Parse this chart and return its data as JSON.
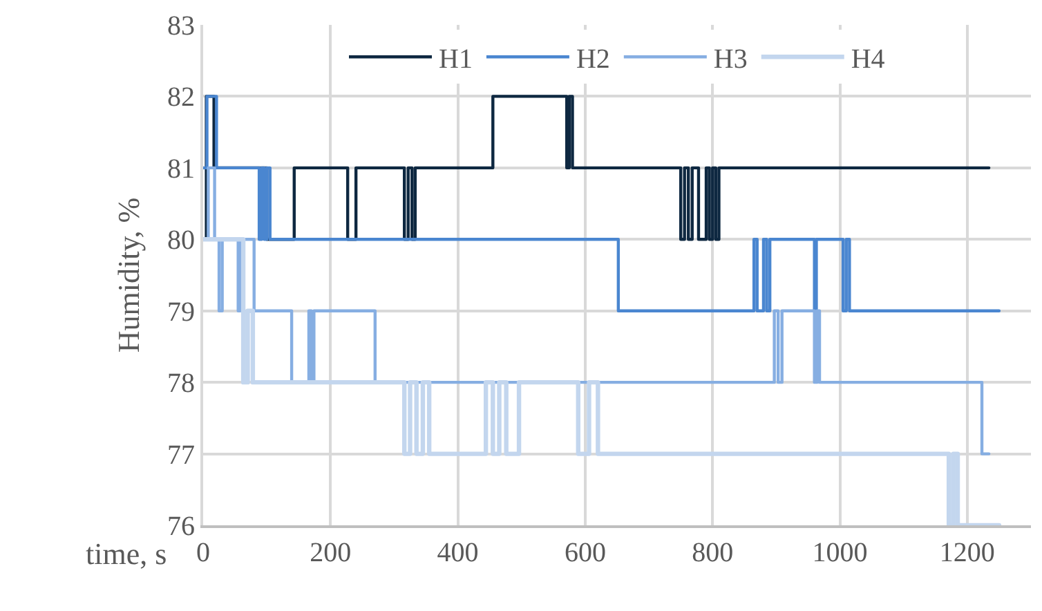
{
  "chart_data": {
    "type": "step",
    "xlabel": "time, s",
    "ylabel": "Humidity, %",
    "xlim": [
      0,
      1300
    ],
    "xticks": [
      0,
      200,
      400,
      600,
      800,
      1000,
      1200
    ],
    "ylim": [
      76,
      83
    ],
    "yticks": [
      76,
      77,
      78,
      79,
      80,
      81,
      82,
      83
    ],
    "grid": true,
    "legend": "top",
    "marker": "none",
    "line_style": "solid",
    "series": [
      {
        "name": "H1",
        "color": "#0e2841",
        "x": [
          0,
          5,
          17,
          100,
          143,
          227,
          240,
          316,
          322,
          328,
          333,
          337,
          455,
          571,
          575,
          580,
          750,
          756,
          762,
          768,
          778,
          790,
          795,
          800,
          805,
          810,
          1234
        ],
        "values": [
          80,
          82,
          81,
          80,
          81,
          80,
          81,
          80,
          81,
          80,
          81,
          81,
          82,
          81,
          82,
          81,
          80,
          81,
          80,
          81,
          80,
          81,
          80,
          81,
          80,
          81,
          81
        ]
      },
      {
        "name": "H2",
        "color": "#4a86d0",
        "x": [
          0,
          6,
          21,
          88,
          92,
          96,
          100,
          105,
          652,
          865,
          870,
          880,
          885,
          890,
          960,
          963,
          1005,
          1010,
          1015,
          1250
        ],
        "values": [
          81,
          82,
          81,
          80,
          81,
          80,
          81,
          80,
          79,
          80,
          79,
          80,
          79,
          80,
          79,
          80,
          79,
          80,
          79,
          79
        ]
      },
      {
        "name": "H3",
        "color": "#86aee2",
        "x": [
          0,
          8,
          18,
          25,
          30,
          55,
          58,
          80,
          139,
          166,
          170,
          174,
          178,
          270,
          897,
          903,
          909,
          916,
          960,
          964,
          968,
          1223,
          1234
        ],
        "values": [
          80,
          81,
          80,
          79,
          80,
          79,
          80,
          79,
          78,
          79,
          78,
          79,
          79,
          78,
          79,
          78,
          79,
          79,
          78,
          79,
          78,
          77,
          77
        ]
      },
      {
        "name": "H4",
        "color": "#c3d6ee",
        "x": [
          0,
          63,
          70,
          78,
          86,
          316,
          325,
          335,
          345,
          355,
          365,
          444,
          455,
          465,
          476,
          486,
          496,
          589,
          606,
          620,
          1171,
          1178,
          1185,
          1250
        ],
        "values": [
          80,
          78,
          79,
          78,
          78,
          77,
          78,
          77,
          78,
          77,
          77,
          78,
          77,
          78,
          77,
          77,
          78,
          77,
          78,
          77,
          76,
          77,
          76,
          76
        ]
      }
    ]
  }
}
